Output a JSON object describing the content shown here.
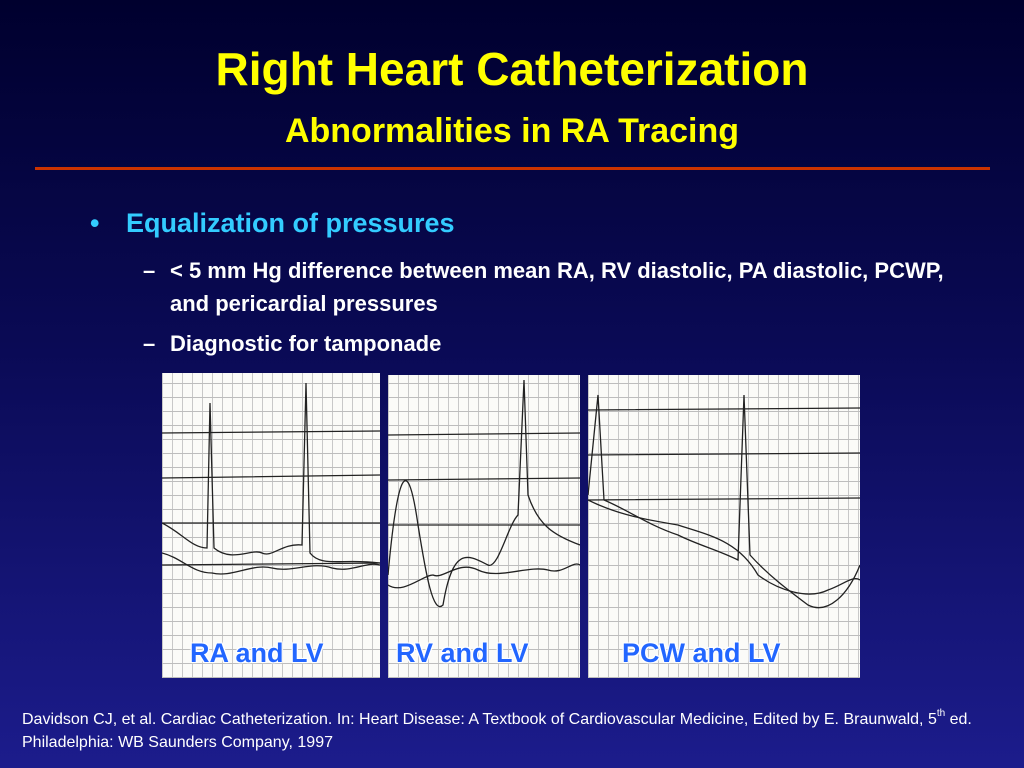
{
  "slide": {
    "title": "Right Heart Catheterization",
    "subtitle": "Abnormalities in RA Tracing",
    "bullets": [
      {
        "text": "Equalization of pressures",
        "subbullets": [
          "< 5 mm Hg difference between mean RA, RV diastolic, PA diastolic, PCWP, and pericardial pressures",
          "Diagnostic for tamponade"
        ]
      }
    ],
    "figures": [
      {
        "caption": "RA and LV"
      },
      {
        "caption": "RV and LV"
      },
      {
        "caption": "PCW and LV"
      }
    ],
    "citation": {
      "before": "Davidson CJ, et al.  Cardiac Catheterization.  In: Heart Disease: A Textbook of Cardiovascular Medicine, Edited by E. Braunwald, 5",
      "sup": "th",
      "after": " ed.  Philadelphia: WB Saunders Company, 1997"
    }
  }
}
